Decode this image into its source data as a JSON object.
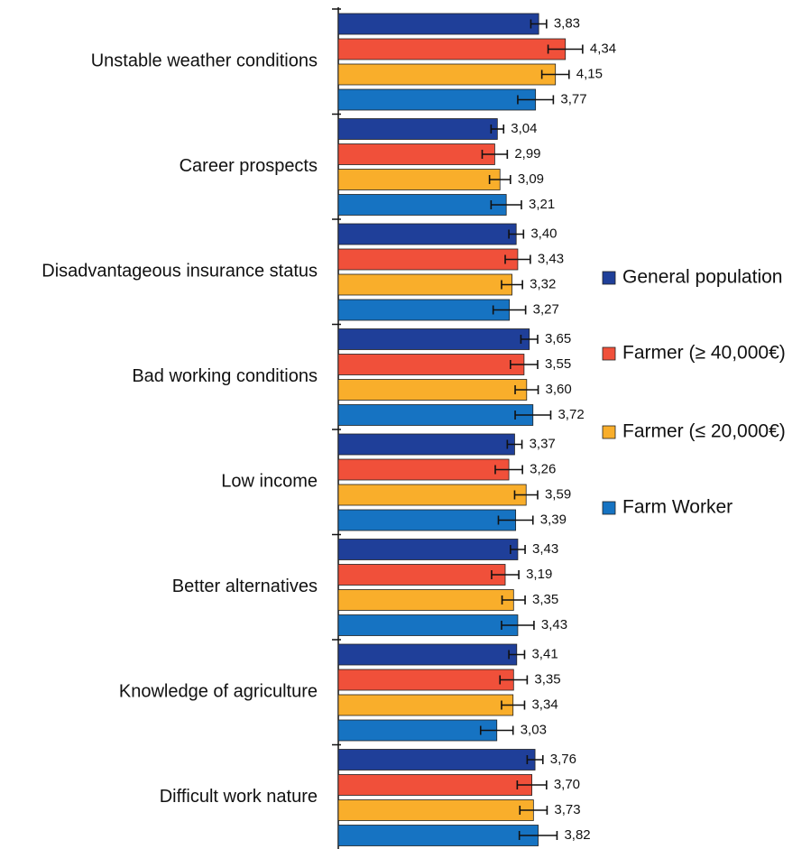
{
  "chart_data": {
    "type": "bar",
    "orientation": "horizontal",
    "categories": [
      "Unstable weather conditions",
      "Career prospects",
      "Disadvantageous insurance status",
      "Bad working conditions",
      "Low income",
      "Better alternatives",
      "Knowledge of agriculture",
      "Difficult work nature"
    ],
    "xlim": [
      0,
      9
    ],
    "series": [
      {
        "name": "General population",
        "color": "#1f3f99",
        "values": [
          3.83,
          3.04,
          3.4,
          3.65,
          3.37,
          3.43,
          3.41,
          3.76
        ],
        "value_labels": [
          "3,83",
          "3,04",
          "3,40",
          "3,65",
          "3,37",
          "3,43",
          "3,41",
          "3,76"
        ],
        "errors": [
          0.15,
          0.12,
          0.14,
          0.16,
          0.14,
          0.14,
          0.15,
          0.15
        ]
      },
      {
        "name": "Farmer (≥ 40,000€)",
        "color": "#f0503a",
        "values": [
          4.34,
          2.99,
          3.43,
          3.55,
          3.26,
          3.19,
          3.35,
          3.7
        ],
        "value_labels": [
          "4,34",
          "2,99",
          "3,43",
          "3,55",
          "3,26",
          "3,19",
          "3,35",
          "3,70"
        ],
        "errors": [
          0.33,
          0.24,
          0.24,
          0.26,
          0.26,
          0.26,
          0.26,
          0.28
        ]
      },
      {
        "name": "Farmer (≤ 20,000€)",
        "color": "#f9ae2b",
        "values": [
          4.15,
          3.09,
          3.32,
          3.6,
          3.59,
          3.35,
          3.34,
          3.73
        ],
        "value_labels": [
          "4,15",
          "3,09",
          "3,32",
          "3,60",
          "3,59",
          "3,35",
          "3,34",
          "3,73"
        ],
        "errors": [
          0.26,
          0.2,
          0.2,
          0.22,
          0.22,
          0.22,
          0.22,
          0.26
        ]
      },
      {
        "name": "Farm Worker",
        "color": "#1673c2",
        "values": [
          3.77,
          3.21,
          3.27,
          3.72,
          3.39,
          3.43,
          3.03,
          3.82
        ],
        "value_labels": [
          "3,77",
          "3,21",
          "3,27",
          "3,72",
          "3,39",
          "3,43",
          "3,03",
          "3,82"
        ],
        "errors": [
          0.34,
          0.29,
          0.31,
          0.34,
          0.33,
          0.31,
          0.31,
          0.36
        ]
      }
    ],
    "legend": "right"
  }
}
